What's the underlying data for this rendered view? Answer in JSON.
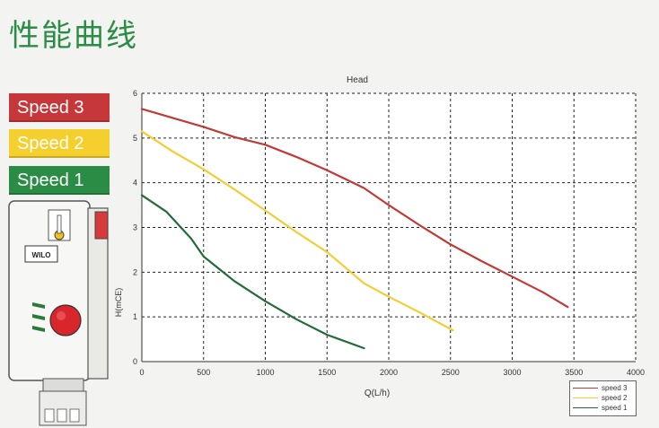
{
  "page_title": "性能曲线",
  "speed_labels": [
    {
      "label": "Speed 3",
      "color": "#c6373a"
    },
    {
      "label": "Speed 2",
      "color": "#f4cf2e"
    },
    {
      "label": "Speed 1",
      "color": "#2a8c45"
    }
  ],
  "pump": {
    "brand": "WILO"
  },
  "chart_data": {
    "type": "line",
    "title": "Head",
    "xlabel": "Q(L/h)",
    "ylabel": "H(mCE)",
    "xlim": [
      0,
      4000
    ],
    "ylim": [
      0,
      6
    ],
    "x_ticks": [
      "0",
      "500",
      "1000",
      "1500",
      "2000",
      "2500",
      "3000",
      "3500",
      "4000"
    ],
    "y_ticks": [
      "0",
      "1",
      "2",
      "3",
      "4",
      "5",
      "6"
    ],
    "grid": true,
    "grid_style": "dashed",
    "legend_position": "bottom-right",
    "series": [
      {
        "name": "speed 3",
        "color": "#c23a36",
        "points": [
          [
            0,
            5.65
          ],
          [
            250,
            5.45
          ],
          [
            500,
            5.25
          ],
          [
            750,
            5.02
          ],
          [
            1000,
            4.85
          ],
          [
            1250,
            4.58
          ],
          [
            1500,
            4.28
          ],
          [
            1800,
            3.88
          ],
          [
            2000,
            3.5
          ],
          [
            2250,
            3.05
          ],
          [
            2500,
            2.62
          ],
          [
            2750,
            2.25
          ],
          [
            3000,
            1.9
          ],
          [
            3250,
            1.55
          ],
          [
            3450,
            1.22
          ]
        ]
      },
      {
        "name": "speed 2",
        "color": "#f2cd33",
        "points": [
          [
            0,
            5.15
          ],
          [
            250,
            4.7
          ],
          [
            500,
            4.3
          ],
          [
            750,
            3.85
          ],
          [
            1000,
            3.38
          ],
          [
            1250,
            2.9
          ],
          [
            1500,
            2.45
          ],
          [
            1800,
            1.75
          ],
          [
            2000,
            1.45
          ],
          [
            2250,
            1.1
          ],
          [
            2520,
            0.7
          ]
        ]
      },
      {
        "name": "speed 1",
        "color": "#256b3a",
        "points": [
          [
            0,
            3.72
          ],
          [
            200,
            3.35
          ],
          [
            400,
            2.75
          ],
          [
            500,
            2.35
          ],
          [
            750,
            1.8
          ],
          [
            1000,
            1.35
          ],
          [
            1250,
            0.95
          ],
          [
            1500,
            0.6
          ],
          [
            1800,
            0.3
          ]
        ]
      }
    ]
  }
}
